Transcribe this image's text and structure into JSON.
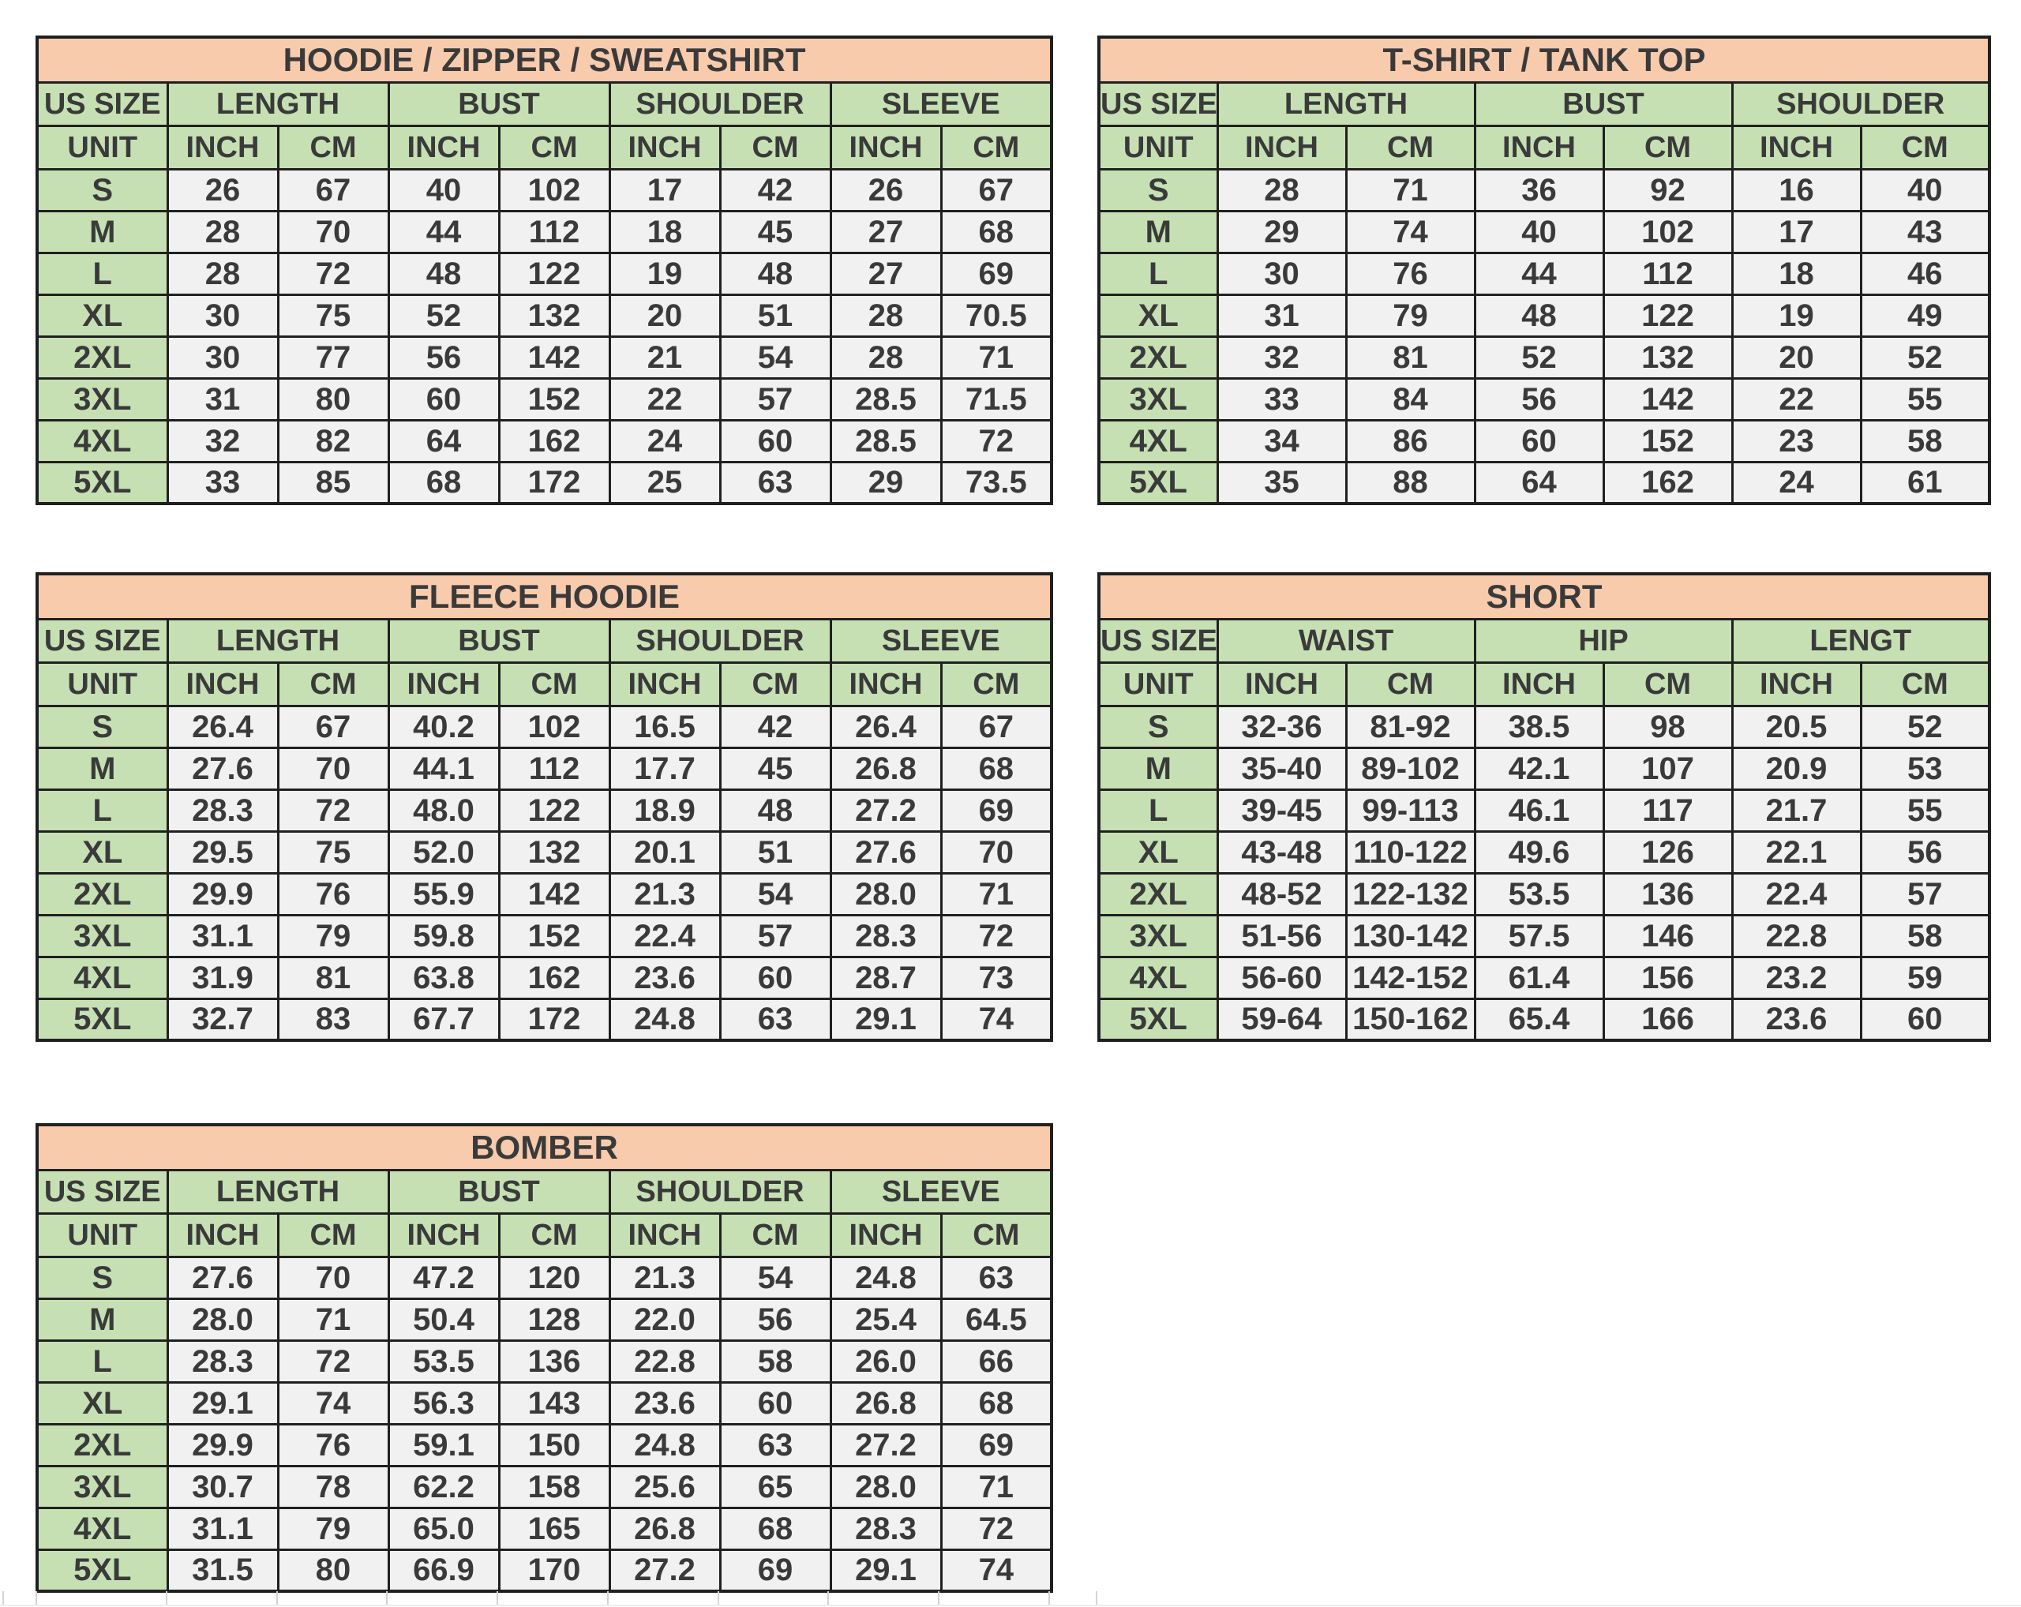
{
  "colors": {
    "peach": "#F8CBAD",
    "green": "#C6E0B4",
    "cell": "#F1F1F1",
    "border": "#202020",
    "text": "#3A3A3A",
    "ghost": "#D4D4D4"
  },
  "labels": {
    "size_col": "US SIZE",
    "unit": "UNIT",
    "inch": "INCH",
    "cm": "CM"
  },
  "tables": [
    {
      "title": "HOODIE / ZIPPER / SWEATSHIRT",
      "groups": [
        "LENGTH",
        "BUST",
        "SHOULDER",
        "SLEEVE"
      ],
      "rows": [
        [
          "S",
          "26",
          "67",
          "40",
          "102",
          "17",
          "42",
          "26",
          "67"
        ],
        [
          "M",
          "28",
          "70",
          "44",
          "112",
          "18",
          "45",
          "27",
          "68"
        ],
        [
          "L",
          "28",
          "72",
          "48",
          "122",
          "19",
          "48",
          "27",
          "69"
        ],
        [
          "XL",
          "30",
          "75",
          "52",
          "132",
          "20",
          "51",
          "28",
          "70.5"
        ],
        [
          "2XL",
          "30",
          "77",
          "56",
          "142",
          "21",
          "54",
          "28",
          "71"
        ],
        [
          "3XL",
          "31",
          "80",
          "60",
          "152",
          "22",
          "57",
          "28.5",
          "71.5"
        ],
        [
          "4XL",
          "32",
          "82",
          "64",
          "162",
          "24",
          "60",
          "28.5",
          "72"
        ],
        [
          "5XL",
          "33",
          "85",
          "68",
          "172",
          "25",
          "63",
          "29",
          "73.5"
        ]
      ]
    },
    {
      "title": "T-SHIRT / TANK TOP",
      "groups": [
        "LENGTH",
        "BUST",
        "SHOULDER"
      ],
      "rows": [
        [
          "S",
          "28",
          "71",
          "36",
          "92",
          "16",
          "40"
        ],
        [
          "M",
          "29",
          "74",
          "40",
          "102",
          "17",
          "43"
        ],
        [
          "L",
          "30",
          "76",
          "44",
          "112",
          "18",
          "46"
        ],
        [
          "XL",
          "31",
          "79",
          "48",
          "122",
          "19",
          "49"
        ],
        [
          "2XL",
          "32",
          "81",
          "52",
          "132",
          "20",
          "52"
        ],
        [
          "3XL",
          "33",
          "84",
          "56",
          "142",
          "22",
          "55"
        ],
        [
          "4XL",
          "34",
          "86",
          "60",
          "152",
          "23",
          "58"
        ],
        [
          "5XL",
          "35",
          "88",
          "64",
          "162",
          "24",
          "61"
        ]
      ]
    },
    {
      "title": "FLEECE HOODIE",
      "groups": [
        "LENGTH",
        "BUST",
        "SHOULDER",
        "SLEEVE"
      ],
      "rows": [
        [
          "S",
          "26.4",
          "67",
          "40.2",
          "102",
          "16.5",
          "42",
          "26.4",
          "67"
        ],
        [
          "M",
          "27.6",
          "70",
          "44.1",
          "112",
          "17.7",
          "45",
          "26.8",
          "68"
        ],
        [
          "L",
          "28.3",
          "72",
          "48.0",
          "122",
          "18.9",
          "48",
          "27.2",
          "69"
        ],
        [
          "XL",
          "29.5",
          "75",
          "52.0",
          "132",
          "20.1",
          "51",
          "27.6",
          "70"
        ],
        [
          "2XL",
          "29.9",
          "76",
          "55.9",
          "142",
          "21.3",
          "54",
          "28.0",
          "71"
        ],
        [
          "3XL",
          "31.1",
          "79",
          "59.8",
          "152",
          "22.4",
          "57",
          "28.3",
          "72"
        ],
        [
          "4XL",
          "31.9",
          "81",
          "63.8",
          "162",
          "23.6",
          "60",
          "28.7",
          "73"
        ],
        [
          "5XL",
          "32.7",
          "83",
          "67.7",
          "172",
          "24.8",
          "63",
          "29.1",
          "74"
        ]
      ]
    },
    {
      "title": "SHORT",
      "groups": [
        "WAIST",
        "HIP",
        "LENGT"
      ],
      "rows": [
        [
          "S",
          "32-36",
          "81-92",
          "38.5",
          "98",
          "20.5",
          "52"
        ],
        [
          "M",
          "35-40",
          "89-102",
          "42.1",
          "107",
          "20.9",
          "53"
        ],
        [
          "L",
          "39-45",
          "99-113",
          "46.1",
          "117",
          "21.7",
          "55"
        ],
        [
          "XL",
          "43-48",
          "110-122",
          "49.6",
          "126",
          "22.1",
          "56"
        ],
        [
          "2XL",
          "48-52",
          "122-132",
          "53.5",
          "136",
          "22.4",
          "57"
        ],
        [
          "3XL",
          "51-56",
          "130-142",
          "57.5",
          "146",
          "22.8",
          "58"
        ],
        [
          "4XL",
          "56-60",
          "142-152",
          "61.4",
          "156",
          "23.2",
          "59"
        ],
        [
          "5XL",
          "59-64",
          "150-162",
          "65.4",
          "166",
          "23.6",
          "60"
        ]
      ]
    },
    {
      "title": "BOMBER",
      "groups": [
        "LENGTH",
        "BUST",
        "SHOULDER",
        "SLEEVE"
      ],
      "rows": [
        [
          "S",
          "27.6",
          "70",
          "47.2",
          "120",
          "21.3",
          "54",
          "24.8",
          "63"
        ],
        [
          "M",
          "28.0",
          "71",
          "50.4",
          "128",
          "22.0",
          "56",
          "25.4",
          "64.5"
        ],
        [
          "L",
          "28.3",
          "72",
          "53.5",
          "136",
          "22.8",
          "58",
          "26.0",
          "66"
        ],
        [
          "XL",
          "29.1",
          "74",
          "56.3",
          "143",
          "23.6",
          "60",
          "26.8",
          "68"
        ],
        [
          "2XL",
          "29.9",
          "76",
          "59.1",
          "150",
          "24.8",
          "63",
          "27.2",
          "69"
        ],
        [
          "3XL",
          "30.7",
          "78",
          "62.2",
          "158",
          "25.6",
          "65",
          "28.0",
          "71"
        ],
        [
          "4XL",
          "31.1",
          "79",
          "65.0",
          "165",
          "26.8",
          "68",
          "28.3",
          "72"
        ],
        [
          "5XL",
          "31.5",
          "80",
          "66.9",
          "170",
          "27.2",
          "69",
          "29.1",
          "74"
        ]
      ]
    }
  ]
}
